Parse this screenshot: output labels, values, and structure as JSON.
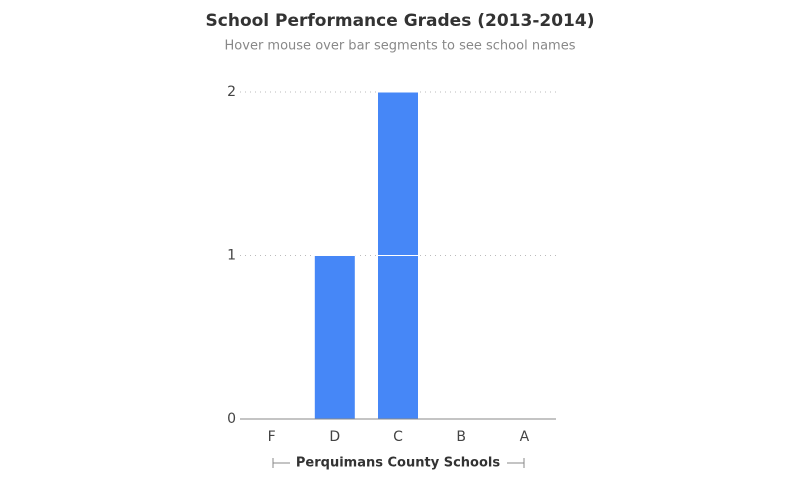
{
  "chart_data": {
    "type": "stacked_bar",
    "title": "School Performance Grades (2013-2014)",
    "subtitle": "Hover mouse over bar segments to see school names",
    "x_label": "Perquimans County Schools",
    "categories": [
      "F",
      "D",
      "C",
      "B",
      "A"
    ],
    "series": [
      {
        "color": "#4687f7",
        "values": [
          0,
          1,
          1,
          0,
          0
        ]
      },
      {
        "color": "#4687f7",
        "values": [
          0,
          0,
          1,
          0,
          0
        ]
      }
    ],
    "ylim": [
      0,
      2
    ],
    "yticks": [
      0,
      1,
      2
    ],
    "grid": true
  }
}
